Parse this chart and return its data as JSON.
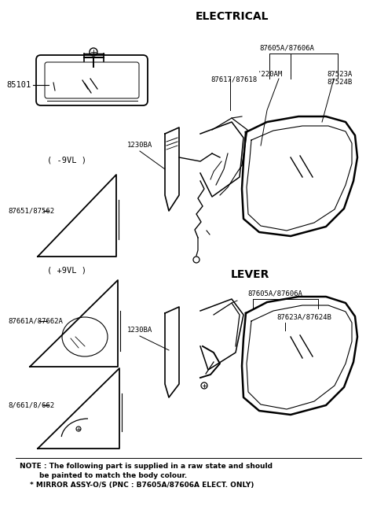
{
  "bg_color": "#ffffff",
  "title_electrical": "ELECTRICAL",
  "title_lever": "LEVER",
  "note_line1": "NOTE : The following part is supplied in a raw state and should",
  "note_line2": "be painted to match the body colour.",
  "note_line3": "* MIRROR ASSY-O/S (PNC : B7605A/87606A ELECT. ONLY)",
  "label_85101": "85101",
  "label_1230BA_1": "1230BA",
  "label_1230BA_2": "1230BA",
  "label_minus9vl": "( -9VL )",
  "label_plus9vl": "( +9VL )",
  "label_87651": "87651/87562",
  "label_87661A": "87661A/87662A",
  "label_87661": "8/661/8/662",
  "label_87605A_elec": "87605A/87606A",
  "label_87617": "87617/87618",
  "label_220AM": "'220AM",
  "label_87523A": "87523A",
  "label_87524B": "87524B",
  "label_87605A_lever": "87605A/87606A",
  "label_87623A": "87623A/87624B",
  "line_color": "#000000",
  "text_color": "#000000"
}
